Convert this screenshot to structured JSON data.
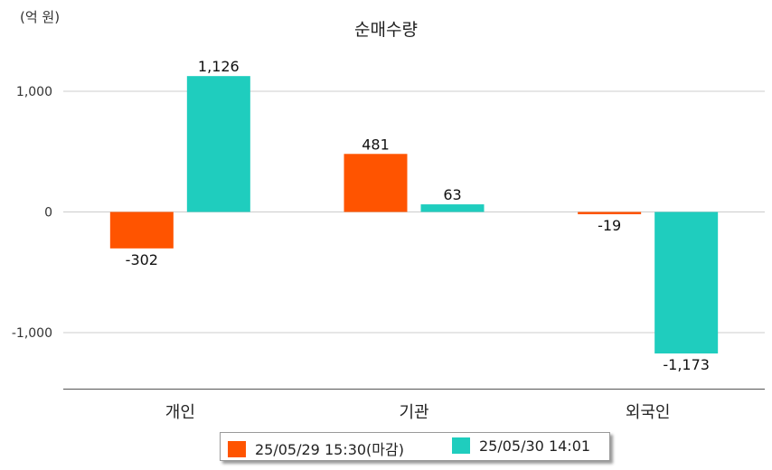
{
  "chart_data": {
    "type": "bar",
    "title": "순매수량",
    "unit_label": "(억 원)",
    "categories": [
      "개인",
      "기관",
      "외국인"
    ],
    "series": [
      {
        "name": "25/05/29 15:30(마감)",
        "color": "#ff5400",
        "values": [
          -302,
          481,
          -19
        ],
        "labels": [
          "-302",
          "481",
          "-19"
        ]
      },
      {
        "name": "25/05/30 14:01",
        "color": "#1fcdbe",
        "values": [
          1126,
          63,
          -1173
        ],
        "labels": [
          "1,126",
          "63",
          "-1,173"
        ]
      }
    ],
    "yticks": [
      1000,
      0,
      -1000
    ],
    "ytick_labels": [
      "1,000",
      "0",
      "-1,000"
    ],
    "ylim": [
      -1470,
      1470
    ],
    "grid": true,
    "legend_position": "bottom"
  }
}
